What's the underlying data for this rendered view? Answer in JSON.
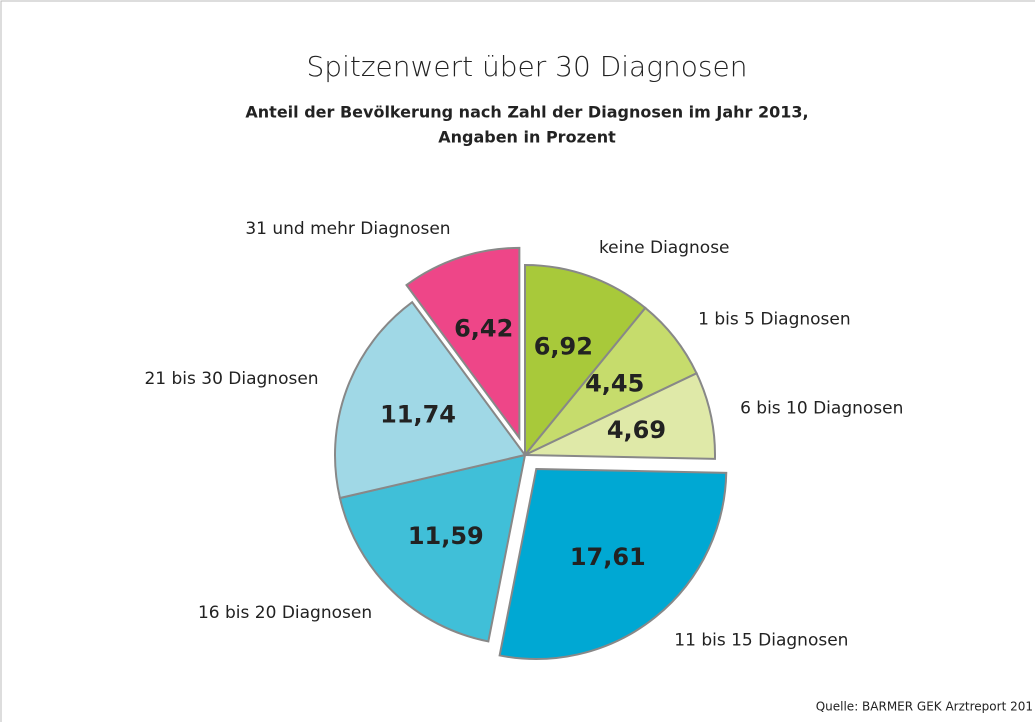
{
  "chart_data": {
    "type": "pie",
    "title": "Spitzenwert über 30 Diagnosen",
    "subtitle": [
      "Anteil der Bevölkerung nach Zahl der Diagnosen im Jahr 2013,",
      "Angaben in Prozent"
    ],
    "source": "Quelle: BARMER GEK Arztreport 201",
    "categories": [
      "keine Diagnose",
      "1 bis 5 Diagnosen",
      "6 bis 10 Diagnosen",
      "11 bis 15 Diagnosen",
      "16 bis 20 Diagnosen",
      "21 bis 30 Diagnosen",
      "31 und mehr Diagnosen"
    ],
    "values": [
      6.92,
      4.45,
      4.69,
      17.61,
      11.59,
      11.74,
      6.42
    ],
    "value_labels": [
      "6,92",
      "4,45",
      "4,69",
      "17,61",
      "11,59",
      "11,74",
      "6,42"
    ],
    "colors": [
      "#a8c93a",
      "#c6dc6c",
      "#dfe9a8",
      "#00a8d3",
      "#40bfd8",
      "#a0d8e6",
      "#ee4688"
    ],
    "explode": [
      false,
      false,
      false,
      true,
      false,
      false,
      true
    ]
  }
}
